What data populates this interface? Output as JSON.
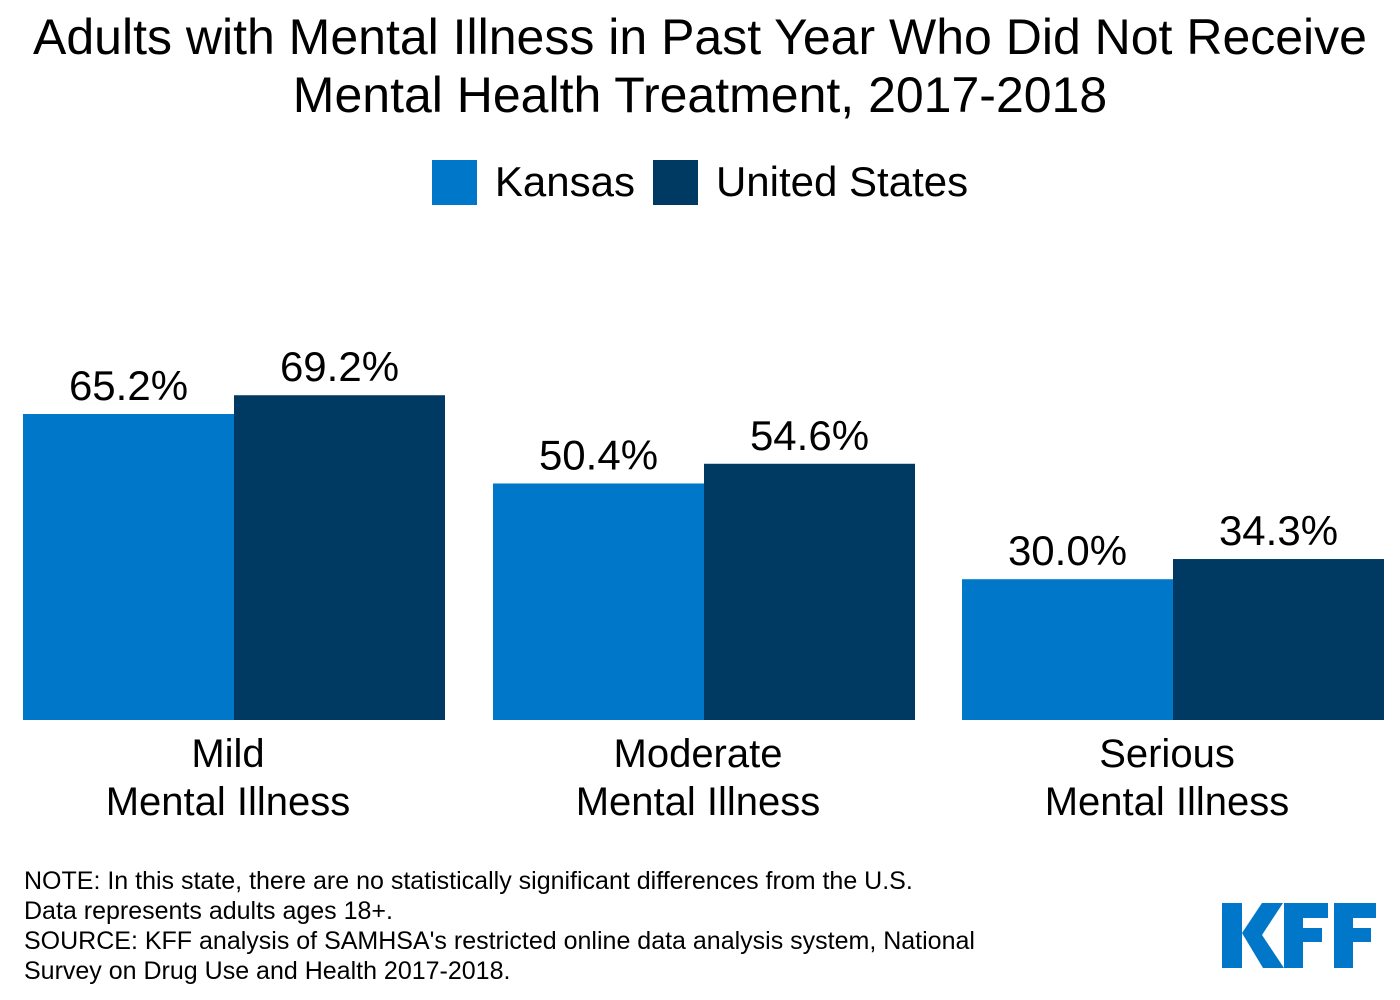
{
  "chart_data": {
    "type": "bar",
    "title": "Adults with Mental Illness in Past Year Who Did Not Receive Mental Health Treatment, 2017-2018",
    "categories": [
      [
        "Mild",
        "Mental Illness"
      ],
      [
        "Moderate",
        "Mental Illness"
      ],
      [
        "Serious",
        "Mental Illness"
      ]
    ],
    "series": [
      {
        "name": "Kansas",
        "color": "#0077c8",
        "values": [
          65.2,
          50.4,
          30.0
        ],
        "labels": [
          "65.2%",
          "50.4%",
          "30.0%"
        ]
      },
      {
        "name": "United States",
        "color": "#003a63",
        "values": [
          69.2,
          54.6,
          34.3
        ],
        "labels": [
          "69.2%",
          "54.6%",
          "34.3%"
        ]
      }
    ],
    "ylim": [
      0,
      100
    ],
    "grid": false,
    "legend": "top-center"
  },
  "notes": [
    "NOTE: In this state, there are no statistically significant differences from the U.S.",
    "Data represents adults ages 18+.",
    "SOURCE: KFF analysis of SAMHSA's restricted online data analysis system, National",
    "Survey on Drug Use and Health 2017-2018."
  ],
  "logo": {
    "text": "KFF",
    "color": "#0077c8"
  }
}
